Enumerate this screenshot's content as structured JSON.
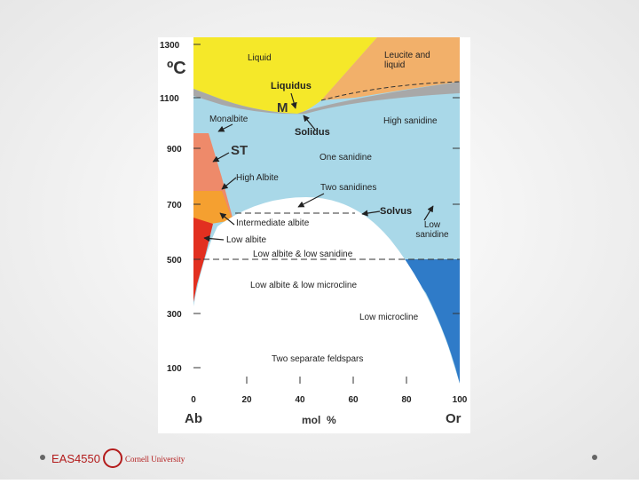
{
  "diagram": {
    "y_unit": "ºC",
    "y_ticks": [
      "1300",
      "1100",
      "900",
      "700",
      "500",
      "300",
      "100"
    ],
    "x_ticks": [
      "0",
      "20",
      "40",
      "60",
      "80",
      "100"
    ],
    "x_left": "Ab",
    "x_right": "Or",
    "x_label": "mol  %",
    "labels": [
      "Liquid",
      "Leucite and liquid",
      "Liquidus",
      "M",
      "Monalbite",
      "High sanidine",
      "Solidus",
      "ST",
      "One sanidine",
      "High Albite",
      "Two sanidines",
      "Solvus",
      "Intermediate albite",
      "Low sanidine",
      "Low albite",
      "Low albite & low sanidine",
      "Low albite & low microcline",
      "Low microcline",
      "Two separate feldspars"
    ]
  },
  "footer": {
    "course": "EAS4550",
    "university": "Cornell University"
  }
}
